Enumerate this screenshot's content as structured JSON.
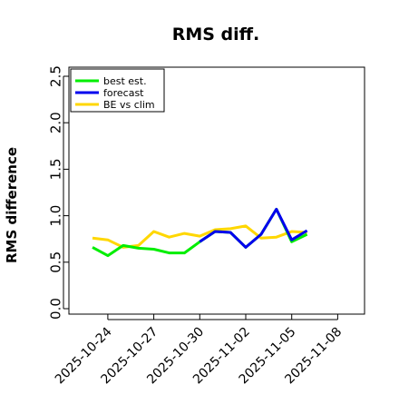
{
  "chart_data": {
    "type": "line",
    "title": "RMS diff.",
    "xlabel": "",
    "ylabel": "RMS difference",
    "ylim": [
      0,
      2.5
    ],
    "yticks": [
      "0.0",
      "0.5",
      "1.0",
      "1.5",
      "2.0",
      "2.5"
    ],
    "xticks": [
      {
        "label": "2025-10-24",
        "color": "#000000"
      },
      {
        "label": "2025-10-27",
        "color": "#000000"
      },
      {
        "label": "2025-10-30",
        "color": "#228b22"
      },
      {
        "label": "2025-11-02",
        "color": "#000000"
      },
      {
        "label": "2025-11-05",
        "color": "#000000"
      },
      {
        "label": "2025-11-08",
        "color": "#000000"
      }
    ],
    "x": [
      "2025-10-23",
      "2025-10-24",
      "2025-10-25",
      "2025-10-26",
      "2025-10-27",
      "2025-10-28",
      "2025-10-29",
      "2025-10-30",
      "2025-10-31",
      "2025-11-01",
      "2025-11-02",
      "2025-11-03",
      "2025-11-04",
      "2025-11-05",
      "2025-11-06"
    ],
    "legend_position": "top-left",
    "series": [
      {
        "name": "best est.",
        "color": "#00ee00",
        "values": [
          0.66,
          0.57,
          0.68,
          0.65,
          0.64,
          0.6,
          0.6,
          0.72,
          0.83,
          0.82,
          0.66,
          0.8,
          1.07,
          0.72,
          0.8
        ]
      },
      {
        "name": "forecast",
        "color": "#0000ee",
        "values": [
          null,
          null,
          null,
          null,
          null,
          null,
          null,
          0.72,
          0.83,
          0.82,
          0.66,
          0.8,
          1.07,
          0.74,
          0.84
        ]
      },
      {
        "name": "BE vs clim",
        "color": "#ffd700",
        "values": [
          0.76,
          0.74,
          0.66,
          0.68,
          0.83,
          0.77,
          0.81,
          0.78,
          0.85,
          0.86,
          0.89,
          0.76,
          0.77,
          0.83,
          0.82
        ]
      }
    ]
  }
}
